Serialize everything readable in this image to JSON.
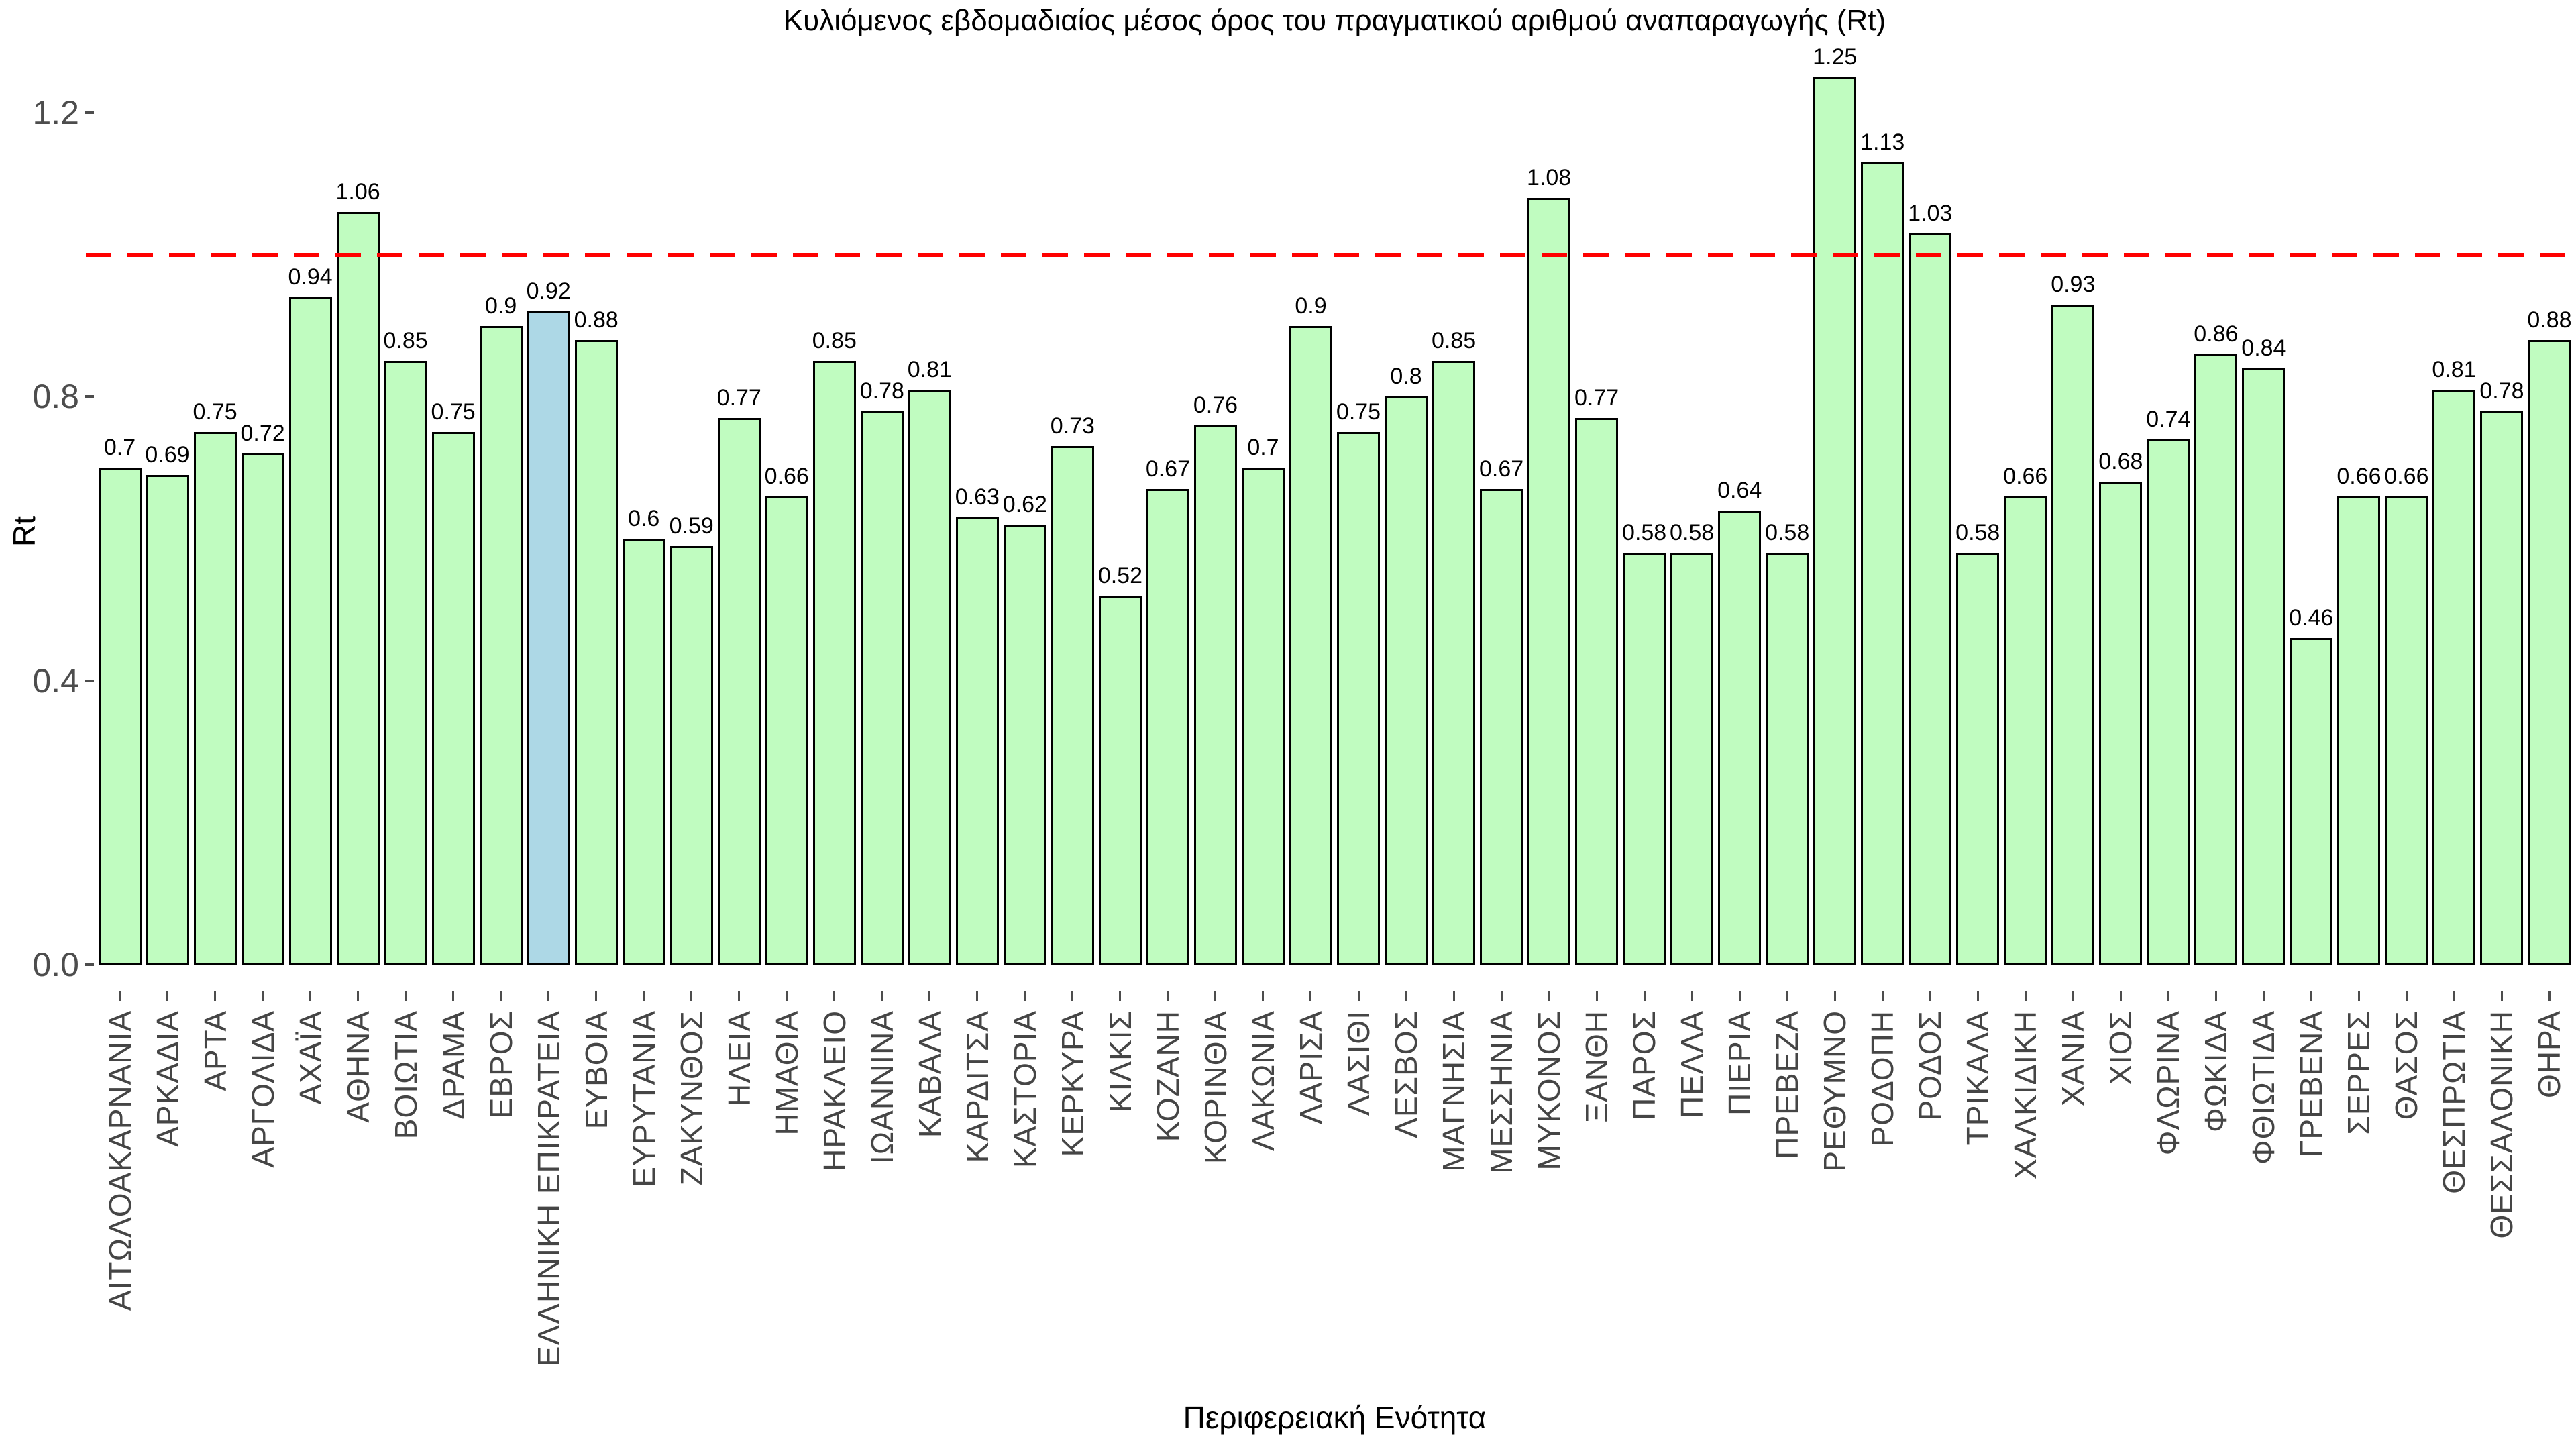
{
  "title": "Κυλιόμενος εβδομαδιαίος μέσος όρος του πραγματικού αριθμού αναπαραγωγής (Rt)",
  "y_axis": {
    "title": "Rt",
    "tick_labels": [
      "0.0",
      "0.4",
      "0.8",
      "1.2"
    ]
  },
  "x_axis": {
    "title": "Περιφερειακή Ενότητα"
  },
  "reference_line": {
    "value": 1.0,
    "color": "#ff0000",
    "style": "dashed"
  },
  "colors": {
    "bar_fill": "#c0fcc0",
    "bar_highlight_fill": "#add8e6",
    "bar_border": "#000000",
    "axis_tick_text": "#4d4d4d",
    "category_text": "#454545",
    "reference_line": "#ff0000",
    "background": "#ffffff"
  },
  "chart_data": {
    "type": "bar",
    "title": "Κυλιόμενος εβδομαδιαίος μέσος όρος του πραγματικού αριθμού αναπαραγωγής (Rt)",
    "xlabel": "Περιφερειακή Ενότητα",
    "ylabel": "Rt",
    "ylim": [
      0,
      1.36
    ],
    "yticks": [
      0,
      0.4,
      0.8,
      1.2
    ],
    "ytick_labels": [
      "0.0",
      "0.4",
      "0.8",
      "1.2"
    ],
    "grid": false,
    "legend": "none",
    "reference_line_y": 1.0,
    "highlight_index": 9,
    "highlight_category": "ΕΛΛΗΝΙΚΗ ΕΠΙΚΡΑΤΕΙΑ",
    "categories": [
      "ΑΙΤΩΛΟΑΚΑΡΝΑΝΙΑ",
      "ΑΡΚΑΔΙΑ",
      "ΑΡΤΑ",
      "ΑΡΓΟΛΙΔΑ",
      "ΑΧΑΪΑ",
      "ΑΘΗΝΑ",
      "ΒΟΙΩΤΙΑ",
      "ΔΡΑΜΑ",
      "ΕΒΡΟΣ",
      "ΕΛΛΗΝΙΚΗ ΕΠΙΚΡΑΤΕΙΑ",
      "ΕΥΒΟΙΑ",
      "ΕΥΡΥΤΑΝΙΑ",
      "ΖΑΚΥΝΘΟΣ",
      "ΗΛΕΙΑ",
      "ΗΜΑΘΙΑ",
      "ΗΡΑΚΛΕΙΟ",
      "ΙΩΑΝΝΙΝΑ",
      "ΚΑΒΑΛΑ",
      "ΚΑΡΔΙΤΣΑ",
      "ΚΑΣΤΟΡΙΑ",
      "ΚΕΡΚΥΡΑ",
      "ΚΙΛΚΙΣ",
      "ΚΟΖΑΝΗ",
      "ΚΟΡΙΝΘΙΑ",
      "ΛΑΚΩΝΙΑ",
      "ΛΑΡΙΣΑ",
      "ΛΑΣΙΘΙ",
      "ΛΕΣΒΟΣ",
      "ΜΑΓΝΗΣΙΑ",
      "ΜΕΣΣΗΝΙΑ",
      "ΜΥΚΟΝΟΣ",
      "ΞΑΝΘΗ",
      "ΠΑΡΟΣ",
      "ΠΕΛΛΑ",
      "ΠΙΕΡΙΑ",
      "ΠΡΕΒΕΖΑ",
      "ΡΕΘΥΜΝΟ",
      "ΡΟΔΟΠΗ",
      "ΡΟΔΟΣ",
      "ΤΡΙΚΑΛΑ",
      "ΧΑΛΚΙΔΙΚΗ",
      "ΧΑΝΙΑ",
      "ΧΙΟΣ",
      "ΦΛΩΡΙΝΑ",
      "ΦΩΚΙΔΑ",
      "ΦΘΙΩΤΙΔΑ",
      "ΓΡΕΒΕΝΑ",
      "ΣΕΡΡΕΣ",
      "ΘΑΣΟΣ",
      "ΘΕΣΠΡΩΤΙΑ",
      "ΘΕΣΣΑΛΟΝΙΚΗ",
      "ΘΗΡΑ"
    ],
    "values": [
      0.7,
      0.69,
      0.75,
      0.72,
      0.94,
      1.06,
      0.85,
      0.75,
      0.9,
      0.92,
      0.88,
      0.6,
      0.59,
      0.77,
      0.66,
      0.85,
      0.78,
      0.81,
      0.63,
      0.62,
      0.73,
      0.52,
      0.67,
      0.76,
      0.7,
      0.9,
      0.75,
      0.8,
      0.85,
      0.67,
      1.08,
      0.77,
      0.58,
      0.58,
      0.64,
      0.58,
      1.25,
      1.13,
      1.03,
      0.58,
      0.66,
      0.93,
      0.68,
      0.74,
      0.86,
      0.84,
      0.46,
      0.66,
      0.66,
      0.81,
      0.78,
      0.88
    ],
    "value_labels": [
      "0.7",
      "0.69",
      "0.75",
      "0.72",
      "0.94",
      "1.06",
      "0.85",
      "0.75",
      "0.9",
      "0.92",
      "0.88",
      "0.6",
      "0.59",
      "0.77",
      "0.66",
      "0.85",
      "0.78",
      "0.81",
      "0.63",
      "0.62",
      "0.73",
      "0.52",
      "0.67",
      "0.76",
      "0.7",
      "0.9",
      "0.75",
      "0.8",
      "0.85",
      "0.67",
      "1.08",
      "0.77",
      "0.58",
      "0.58",
      "0.64",
      "0.58",
      "1.25",
      "1.13",
      "1.03",
      "0.58",
      "0.66",
      "0.93",
      "0.68",
      "0.74",
      "0.86",
      "0.84",
      "0.46",
      "0.66",
      "0.66",
      "0.81",
      "0.78",
      "0.88"
    ]
  }
}
